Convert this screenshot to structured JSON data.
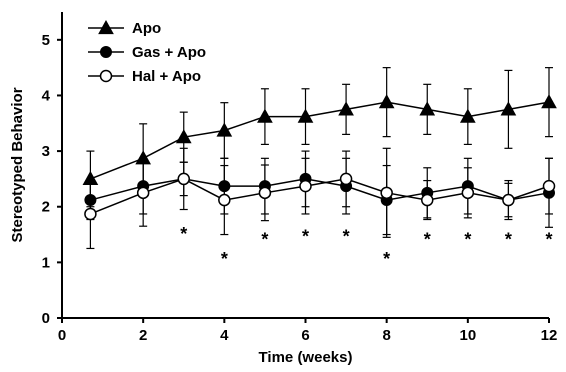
{
  "chart_data": {
    "type": "line",
    "xlabel": "Time (weeks)",
    "ylabel": "Stereotyped Behavior",
    "xlim": [
      0,
      12
    ],
    "ylim": [
      0,
      5.5
    ],
    "xticks": [
      0,
      2,
      4,
      6,
      8,
      10,
      12
    ],
    "yticks": [
      0,
      1,
      2,
      3,
      4,
      5
    ],
    "grid": false,
    "legend_position": "top-left",
    "x": [
      0.7,
      2,
      3,
      4,
      5,
      6,
      7,
      8,
      9,
      10,
      11,
      12
    ],
    "series": [
      {
        "name": "Apo",
        "marker": "filled-triangle",
        "values": [
          2.5,
          2.87,
          3.25,
          3.37,
          3.62,
          3.62,
          3.75,
          3.88,
          3.75,
          3.62,
          3.75,
          3.88
        ],
        "errors": [
          0.5,
          0.62,
          0.45,
          0.5,
          0.5,
          0.5,
          0.45,
          0.62,
          0.45,
          0.5,
          0.7,
          0.62
        ]
      },
      {
        "name": "Gas + Apo",
        "marker": "filled-circle",
        "values": [
          2.12,
          2.37,
          2.5,
          2.37,
          2.37,
          2.5,
          2.37,
          2.12,
          2.25,
          2.37,
          2.12,
          2.25
        ],
        "errors": [
          0.35,
          0.5,
          0.3,
          0.5,
          0.5,
          0.5,
          0.5,
          0.62,
          0.45,
          0.5,
          0.35,
          0.62
        ]
      },
      {
        "name": "Hal + Apo",
        "marker": "open-circle",
        "values": [
          1.87,
          2.25,
          2.5,
          2.12,
          2.25,
          2.37,
          2.5,
          2.25,
          2.12,
          2.25,
          2.12,
          2.37
        ],
        "errors": [
          0.62,
          0.6,
          0.55,
          0.62,
          0.5,
          0.5,
          0.5,
          0.8,
          0.35,
          0.45,
          0.3,
          0.5
        ]
      }
    ],
    "significance_marks": [
      {
        "x": 3,
        "text": "*"
      },
      {
        "x": 4,
        "text": "*"
      },
      {
        "x": 5,
        "text": "*"
      },
      {
        "x": 6,
        "text": "*"
      },
      {
        "x": 7,
        "text": "*"
      },
      {
        "x": 8,
        "text": "*"
      },
      {
        "x": 9,
        "text": "*"
      },
      {
        "x": 10,
        "text": "*"
      },
      {
        "x": 11,
        "text": "*"
      },
      {
        "x": 12,
        "text": "*"
      }
    ],
    "significance_y": [
      1.55,
      1.1,
      1.45,
      1.5,
      1.5,
      1.1,
      1.45,
      1.45,
      1.45,
      1.45
    ]
  }
}
